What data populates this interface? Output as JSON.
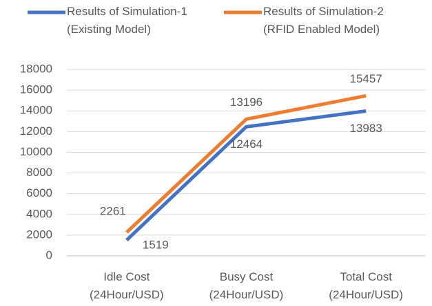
{
  "chart_data": {
    "type": "line",
    "categories": [
      "Idle Cost\n(24Hour/USD)",
      "Busy Cost\n(24Hour/USD)",
      "Total Cost\n(24Hour/USD)"
    ],
    "series": [
      {
        "name": "Results of Simulation-1\n(Existing Model)",
        "color": "#4472c4",
        "values": [
          1519,
          12464,
          13983
        ]
      },
      {
        "name": "Results of Simulation-2\n(RFID Enabled Model)",
        "color": "#ed7d31",
        "values": [
          2261,
          13196,
          15457
        ]
      }
    ],
    "ylim": [
      0,
      18000
    ],
    "yticks": [
      0,
      2000,
      4000,
      6000,
      8000,
      10000,
      12000,
      14000,
      16000,
      18000
    ],
    "grid": true,
    "legend": "top"
  }
}
